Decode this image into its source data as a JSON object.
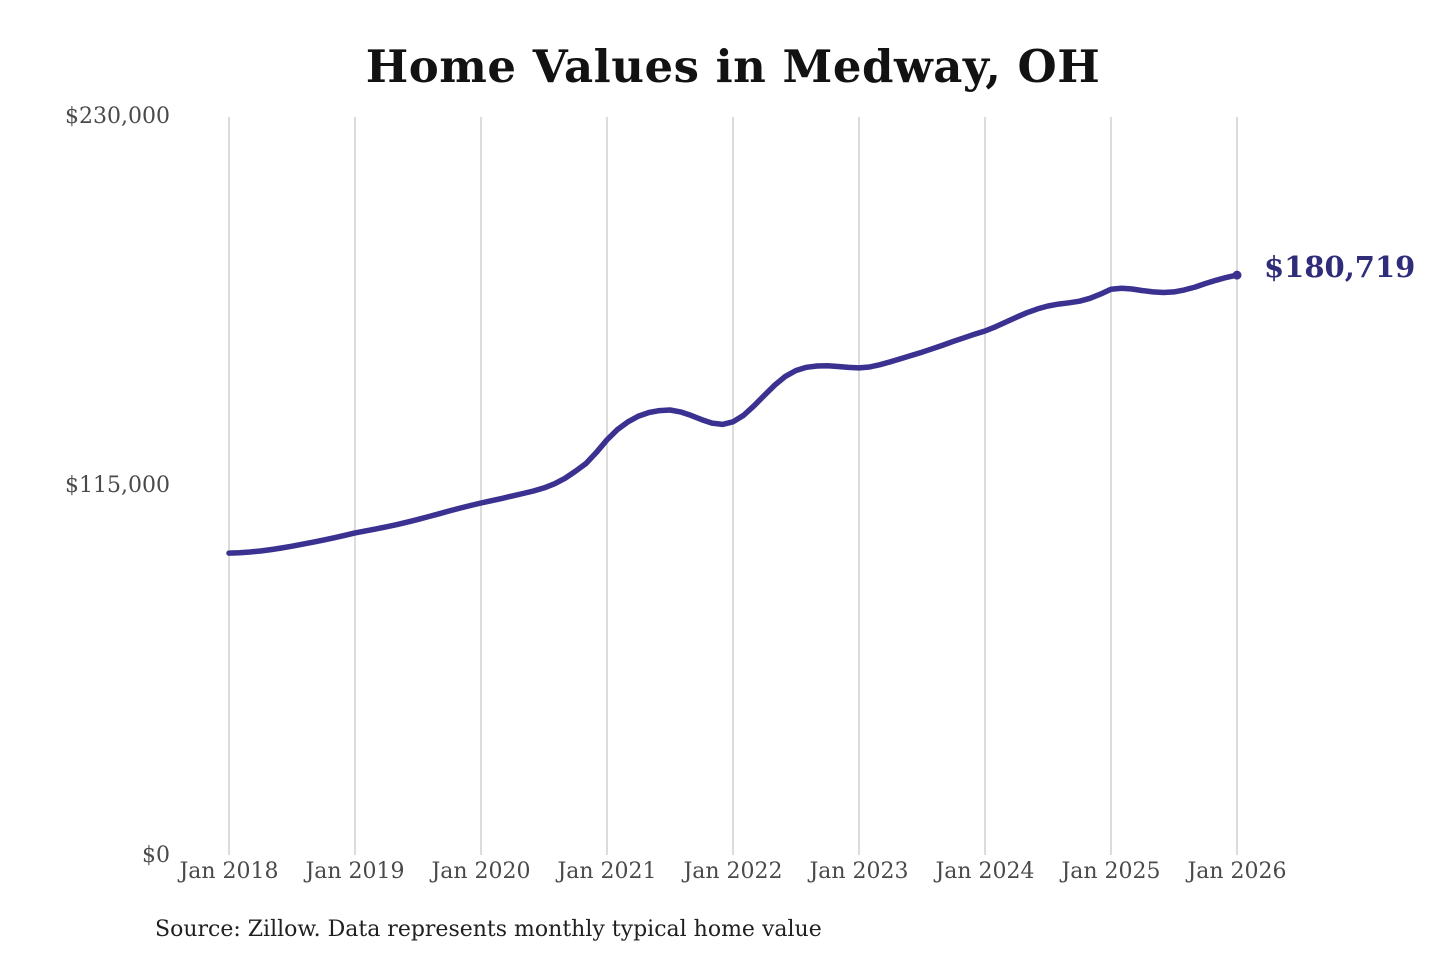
{
  "title": "Home Values in Medway, OH",
  "source_note": "Source: Zillow. Data represents monthly typical home value",
  "colors": {
    "line": "#3a3190",
    "annotation": "#2f2c79",
    "gridline": "#c9c9c9",
    "tick_text": "#4a4a4a",
    "title_text": "#121212",
    "background": "#ffffff"
  },
  "chart_data": {
    "type": "line",
    "title": "Home Values in Medway, OH",
    "x_interval": "monthly",
    "x_range": [
      "2018-01",
      "2026-01"
    ],
    "x_tick_labels": [
      "Jan 2018",
      "Jan 2019",
      "Jan 2020",
      "Jan 2021",
      "Jan 2022",
      "Jan 2023",
      "Jan 2024",
      "Jan 2025",
      "Jan 2026"
    ],
    "y_tick_labels": [
      "$0",
      "$115,000",
      "$230,000"
    ],
    "y_ticks": [
      0,
      115000,
      230000
    ],
    "ylim": [
      0,
      230000
    ],
    "grid": "vertical-only",
    "legend": "none",
    "end_label": "$180,719",
    "end_value": 180719,
    "series": [
      {
        "name": "Monthly typical home value",
        "color": "#3a3190",
        "values": [
          94097,
          94200,
          94420,
          94750,
          95180,
          95680,
          96250,
          96850,
          97480,
          98150,
          98850,
          99600,
          100380,
          101000,
          101620,
          102280,
          102980,
          103760,
          104580,
          105450,
          106350,
          107250,
          108100,
          108920,
          109700,
          110420,
          111150,
          111900,
          112650,
          113430,
          114400,
          115700,
          117400,
          119600,
          122000,
          125500,
          129400,
          132600,
          135000,
          136800,
          137900,
          138500,
          138700,
          138100,
          137000,
          135700,
          134600,
          134200,
          135000,
          137000,
          140000,
          143300,
          146500,
          149200,
          151000,
          152000,
          152400,
          152450,
          152250,
          151950,
          151800,
          152100,
          152800,
          153700,
          154700,
          155700,
          156700,
          157800,
          158900,
          160100,
          161200,
          162300,
          163300,
          164600,
          166100,
          167600,
          169000,
          170200,
          171100,
          171700,
          172100,
          172600,
          173500,
          174800,
          176300,
          176600,
          176400,
          175900,
          175500,
          175300,
          175500,
          176100,
          177000,
          178100,
          179100,
          180000,
          180719
        ]
      }
    ]
  }
}
